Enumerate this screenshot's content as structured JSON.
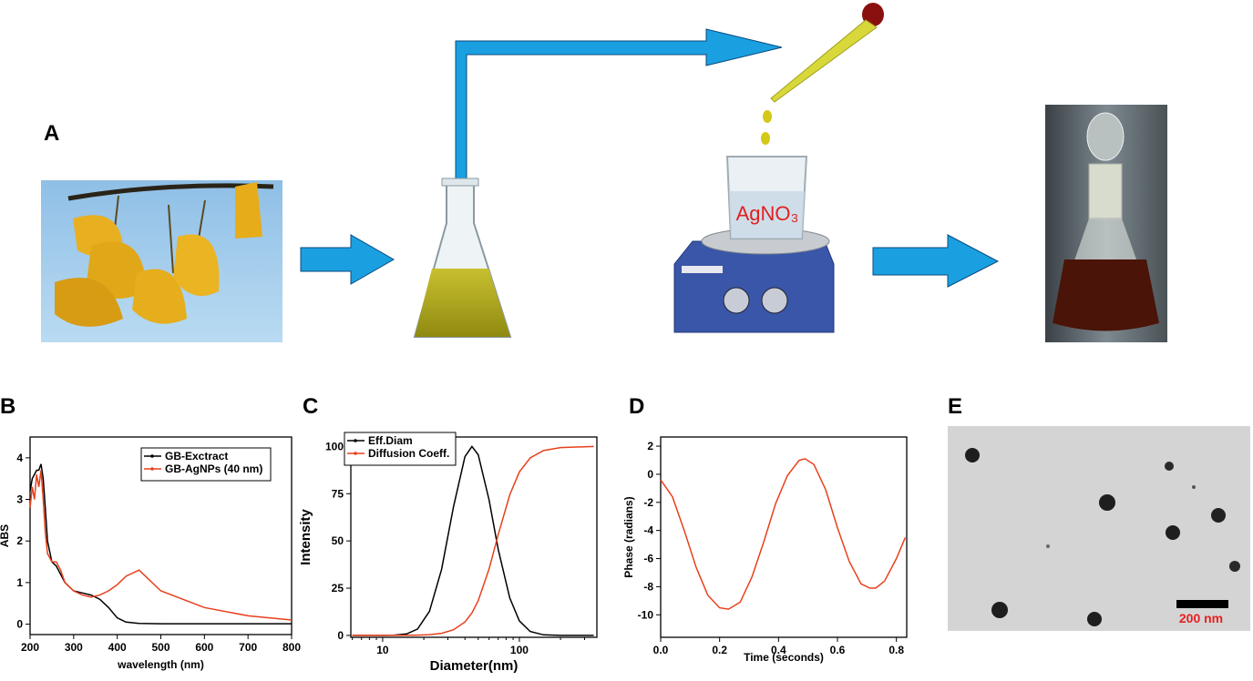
{
  "panel_labels": [
    "A",
    "B",
    "C",
    "D",
    "E"
  ],
  "illustration": {
    "reagent": "AgNO₃"
  },
  "micrograph": {
    "scale_bar": "200 nm"
  },
  "chart_data": [
    {
      "type": "line",
      "x_label": "wavelength (nm)",
      "y_label": "ABS",
      "x": [
        200,
        205,
        210,
        215,
        220,
        225,
        230,
        235,
        240,
        250,
        260,
        270,
        280,
        300,
        320,
        340,
        360,
        380,
        400,
        420,
        450,
        500,
        600,
        700,
        800
      ],
      "series": [
        {
          "name": "GB-Exctract",
          "color": "#000000",
          "values": [
            3.2,
            3.5,
            3.6,
            3.7,
            3.7,
            3.85,
            3.5,
            2.8,
            2.0,
            1.5,
            1.4,
            1.2,
            1.0,
            0.8,
            0.75,
            0.7,
            0.6,
            0.4,
            0.15,
            0.05,
            0.02,
            0.01,
            0.01,
            0.01,
            0.01
          ]
        },
        {
          "name": "GB-AgNPs (40 nm)",
          "color": "#e8401c",
          "values": [
            2.8,
            3.3,
            3.0,
            3.6,
            3.3,
            3.7,
            3.0,
            2.2,
            1.7,
            1.5,
            1.5,
            1.3,
            1.0,
            0.8,
            0.7,
            0.65,
            0.7,
            0.8,
            0.95,
            1.15,
            1.3,
            0.8,
            0.4,
            0.2,
            0.1
          ]
        }
      ],
      "xlim": [
        200,
        800
      ],
      "xticks": [
        200,
        300,
        400,
        500,
        600,
        700,
        800
      ],
      "ylim": [
        -0.25,
        4.5
      ],
      "yticks": [
        0,
        1,
        2,
        3,
        4
      ],
      "legend": "upper right"
    },
    {
      "type": "line",
      "x_label": "Diameter(nm)",
      "y_label": "Intensity",
      "log_x": true,
      "x": [
        6,
        8,
        10,
        12,
        15,
        18,
        22,
        27,
        33,
        40,
        45,
        50,
        60,
        70,
        85,
        100,
        120,
        150,
        200,
        350
      ],
      "series": [
        {
          "name": "Eff.Diam",
          "color": "#000000",
          "values": [
            0,
            0,
            0,
            0.09,
            0.79,
            3.4,
            12.8,
            35,
            68.2,
            94.6,
            100,
            95.6,
            71.7,
            45.6,
            19.8,
            7.7,
            2.1,
            0.3,
            0,
            0
          ]
        },
        {
          "name": "Diffusion Coeff.",
          "color": "#e8401c",
          "values": [
            0,
            0,
            0,
            0.02,
            0.07,
            0.16,
            0.42,
            1.1,
            3.0,
            7.1,
            11.9,
            18.4,
            35.2,
            53.3,
            74.4,
            86.5,
            93.9,
            97.8,
            99.4,
            100
          ]
        }
      ],
      "xlim": [
        5.85,
        369
      ],
      "xticks": [
        10,
        100
      ],
      "ylim": [
        -1,
        105
      ],
      "yticks": [
        0,
        25,
        50,
        75,
        100
      ],
      "legend": "upper left"
    },
    {
      "type": "line",
      "x_label": "Time (seconds)",
      "y_label": "Phase (radians)",
      "x": [
        0,
        0.04,
        0.08,
        0.12,
        0.16,
        0.2,
        0.23,
        0.27,
        0.31,
        0.35,
        0.39,
        0.43,
        0.47,
        0.49,
        0.52,
        0.56,
        0.6,
        0.64,
        0.68,
        0.71,
        0.73,
        0.76,
        0.8,
        0.83
      ],
      "series": [
        {
          "color": "#e8401c",
          "values": [
            -0.4,
            -1.6,
            -4.0,
            -6.6,
            -8.6,
            -9.5,
            -9.6,
            -9.1,
            -7.3,
            -4.8,
            -2.1,
            -0.1,
            1.0,
            1.1,
            0.7,
            -1.1,
            -3.8,
            -6.2,
            -7.8,
            -8.1,
            -8.1,
            -7.6,
            -6.0,
            -4.5
          ]
        }
      ],
      "xlim": [
        0,
        0.835
      ],
      "xticks": [
        {
          "value": 0,
          "label": "0.0"
        },
        0.2,
        0.4,
        0.6,
        0.8
      ],
      "ylim": [
        -11.6,
        2.65
      ],
      "yticks": [
        2,
        0,
        -2,
        -4,
        -6,
        -8,
        -10
      ]
    }
  ]
}
